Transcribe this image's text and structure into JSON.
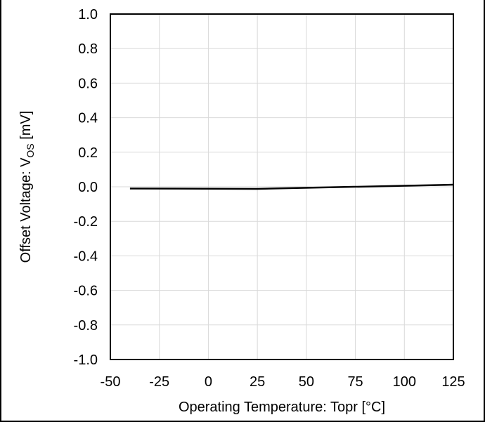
{
  "chart_data": {
    "type": "line",
    "title": "",
    "xlabel": "Operating Temperature: Topr [°C]",
    "ylabel": {
      "prefix": "Offset Voltage: V",
      "subscript": "OS",
      "suffix": " [mV]"
    },
    "xlim": [
      -50,
      125
    ],
    "ylim": [
      -1.0,
      1.0
    ],
    "x_ticks": [
      "-50",
      "-25",
      "0",
      "25",
      "50",
      "75",
      "100",
      "125"
    ],
    "x_tick_values": [
      -50,
      -25,
      0,
      25,
      50,
      75,
      100,
      125
    ],
    "y_ticks": [
      "1.0",
      "0.8",
      "0.6",
      "0.4",
      "0.2",
      "0.0",
      "-0.2",
      "-0.4",
      "-0.6",
      "-0.8",
      "-1.0"
    ],
    "y_tick_values": [
      1.0,
      0.8,
      0.6,
      0.4,
      0.2,
      0.0,
      -0.2,
      -0.4,
      -0.6,
      -0.8,
      -1.0
    ],
    "grid": true,
    "series": [
      {
        "x": [
          -40,
          25,
          125
        ],
        "y": [
          -0.01,
          -0.012,
          0.012
        ]
      }
    ],
    "colors": {
      "line": "#000000",
      "grid": "#d9d9d9",
      "axis": "#000000"
    }
  }
}
